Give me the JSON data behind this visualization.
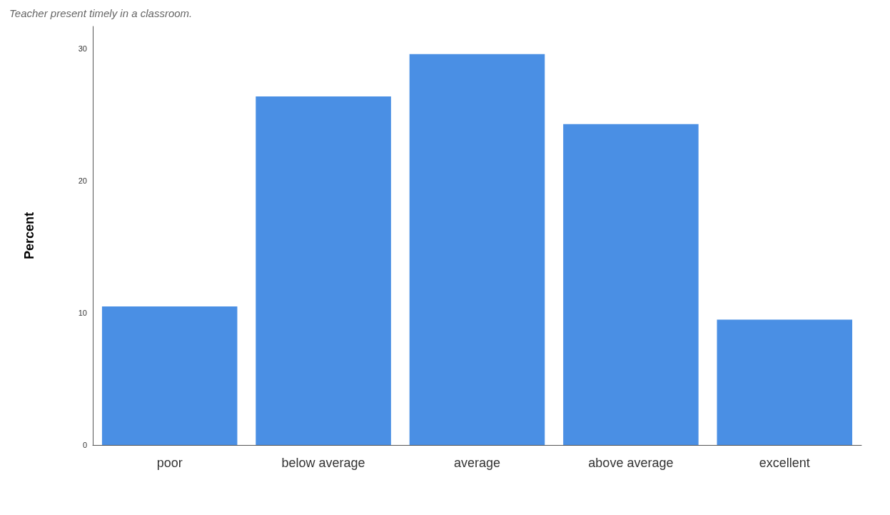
{
  "chart_data": {
    "type": "bar",
    "title": "Teacher present timely in a classroom.",
    "ylabel": "Percent",
    "categories": [
      "poor",
      "below average",
      "average",
      "above average",
      "excellent"
    ],
    "values": [
      10.5,
      26.4,
      29.6,
      24.3,
      9.5
    ],
    "color": "#4a8fe4",
    "ylim": [
      0,
      31.7
    ],
    "yticks": [
      0,
      10,
      20,
      30
    ],
    "grid": false
  }
}
